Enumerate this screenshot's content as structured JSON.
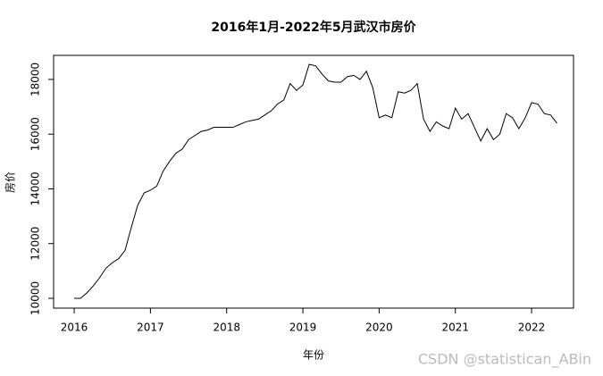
{
  "chart_data": {
    "type": "line",
    "title": "2016年1月-2022年5月武汉市房价",
    "x_label": "年份",
    "y_label": "房价",
    "watermark": "CSDN @statistican_ABin",
    "x": [
      2016,
      2016.083,
      2016.167,
      2016.25,
      2016.333,
      2016.417,
      2016.5,
      2016.583,
      2016.667,
      2016.75,
      2016.833,
      2016.917,
      2017,
      2017.083,
      2017.167,
      2017.25,
      2017.333,
      2017.417,
      2017.5,
      2017.583,
      2017.667,
      2017.75,
      2017.833,
      2017.917,
      2018,
      2018.083,
      2018.167,
      2018.25,
      2018.333,
      2018.417,
      2018.5,
      2018.583,
      2018.667,
      2018.75,
      2018.833,
      2018.917,
      2019,
      2019.083,
      2019.167,
      2019.25,
      2019.333,
      2019.417,
      2019.5,
      2019.583,
      2019.667,
      2019.75,
      2019.833,
      2019.917,
      2020,
      2020.083,
      2020.167,
      2020.25,
      2020.333,
      2020.417,
      2020.5,
      2020.583,
      2020.667,
      2020.75,
      2020.833,
      2020.917,
      2021,
      2021.083,
      2021.167,
      2021.25,
      2021.333,
      2021.417,
      2021.5,
      2021.583,
      2021.667,
      2021.75,
      2021.833,
      2021.917,
      2022,
      2022.083,
      2022.167,
      2022.25,
      2022.333
    ],
    "values": [
      10000,
      10000,
      10200,
      10450,
      10750,
      11100,
      11300,
      11450,
      11750,
      12600,
      13400,
      13850,
      13950,
      14100,
      14650,
      15000,
      15300,
      15450,
      15800,
      15950,
      16100,
      16150,
      16250,
      16250,
      16250,
      16250,
      16350,
      16450,
      16500,
      16550,
      16700,
      16850,
      17100,
      17250,
      17850,
      17600,
      17800,
      18550,
      18500,
      18200,
      17950,
      17900,
      17900,
      18100,
      18150,
      18000,
      18300,
      17700,
      16600,
      16700,
      16600,
      17550,
      17500,
      17600,
      17850,
      16550,
      16100,
      16450,
      16300,
      16200,
      16950,
      16550,
      16750,
      16250,
      15750,
      16200,
      15800,
      16000,
      16750,
      16600,
      16200,
      16600,
      17150,
      17100,
      16750,
      16700,
      16400
    ],
    "color": "#000000",
    "xlim": [
      2015.73,
      2022.55
    ],
    "xticks": [
      2016,
      2017,
      2018,
      2019,
      2020,
      2021,
      2022
    ],
    "ylim": [
      9640,
      18880
    ],
    "yticks": [
      10000,
      12000,
      14000,
      16000,
      18000
    ]
  }
}
